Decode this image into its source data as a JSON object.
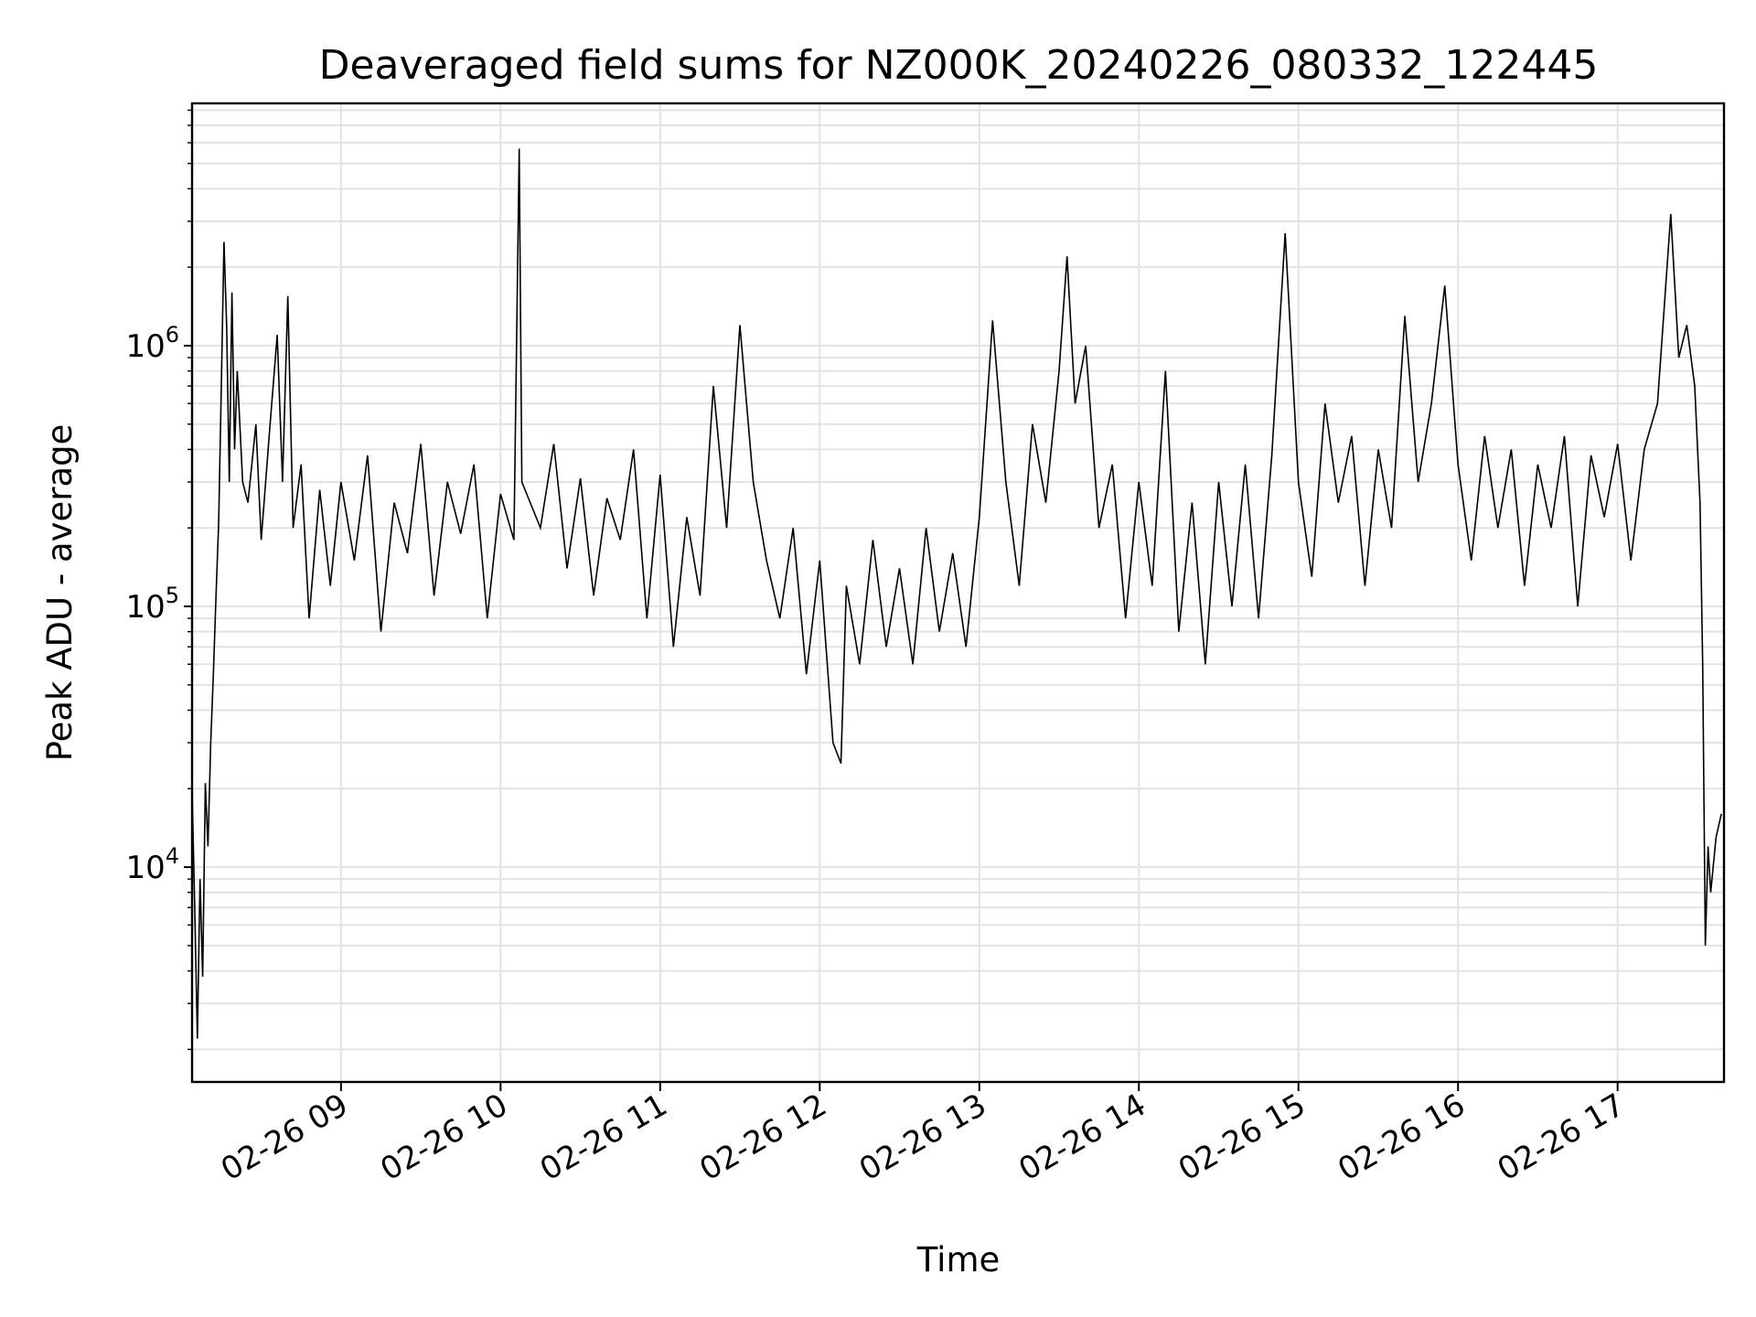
{
  "chart_data": {
    "type": "line",
    "title": "Deaveraged field sums for NZ000K_20240226_080332_122445",
    "xlabel": "Time",
    "ylabel": "Peak ADU - average",
    "y_scale": "log",
    "x_axis_type": "datetime",
    "xlim": [
      "02-26 08:04",
      "02-26 17:40"
    ],
    "ylim": [
      1500,
      8500000
    ],
    "grid": true,
    "line_color": "#000000",
    "x_ticks": [
      "02-26 09",
      "02-26 10",
      "02-26 11",
      "02-26 12",
      "02-26 13",
      "02-26 14",
      "02-26 15",
      "02-26 16",
      "02-26 17"
    ],
    "y_ticks": [
      {
        "base": "10",
        "exp": "4",
        "value": 10000
      },
      {
        "base": "10",
        "exp": "5",
        "value": 100000
      },
      {
        "base": "10",
        "exp": "6",
        "value": 1000000
      }
    ],
    "series": [
      {
        "points": [
          [
            "02-26 08:04",
            20000
          ],
          [
            "02-26 08:05",
            7000
          ],
          [
            "02-26 08:06",
            2200
          ],
          [
            "02-26 08:07",
            9000
          ],
          [
            "02-26 08:08",
            3800
          ],
          [
            "02-26 08:09",
            21000
          ],
          [
            "02-26 08:10",
            12000
          ],
          [
            "02-26 08:11",
            30000
          ],
          [
            "02-26 08:12",
            55000
          ],
          [
            "02-26 08:13",
            110000
          ],
          [
            "02-26 08:14",
            210000
          ],
          [
            "02-26 08:15",
            700000
          ],
          [
            "02-26 08:16",
            2500000
          ],
          [
            "02-26 08:17",
            1200000
          ],
          [
            "02-26 08:18",
            300000
          ],
          [
            "02-26 08:19",
            1600000
          ],
          [
            "02-26 08:20",
            400000
          ],
          [
            "02-26 08:21",
            800000
          ],
          [
            "02-26 08:23",
            300000
          ],
          [
            "02-26 08:25",
            250000
          ],
          [
            "02-26 08:28",
            500000
          ],
          [
            "02-26 08:30",
            180000
          ],
          [
            "02-26 08:33",
            450000
          ],
          [
            "02-26 08:36",
            1100000
          ],
          [
            "02-26 08:38",
            300000
          ],
          [
            "02-26 08:40",
            1550000
          ],
          [
            "02-26 08:42",
            200000
          ],
          [
            "02-26 08:45",
            350000
          ],
          [
            "02-26 08:48",
            90000
          ],
          [
            "02-26 08:52",
            280000
          ],
          [
            "02-26 08:56",
            120000
          ],
          [
            "02-26 09:00",
            300000
          ],
          [
            "02-26 09:05",
            150000
          ],
          [
            "02-26 09:10",
            380000
          ],
          [
            "02-26 09:15",
            80000
          ],
          [
            "02-26 09:20",
            250000
          ],
          [
            "02-26 09:25",
            160000
          ],
          [
            "02-26 09:30",
            420000
          ],
          [
            "02-26 09:35",
            110000
          ],
          [
            "02-26 09:40",
            300000
          ],
          [
            "02-26 09:45",
            190000
          ],
          [
            "02-26 09:50",
            350000
          ],
          [
            "02-26 09:55",
            90000
          ],
          [
            "02-26 10:00",
            270000
          ],
          [
            "02-26 10:05",
            180000
          ],
          [
            "02-26 10:07",
            5700000
          ],
          [
            "02-26 10:08",
            300000
          ],
          [
            "02-26 10:15",
            200000
          ],
          [
            "02-26 10:20",
            420000
          ],
          [
            "02-26 10:25",
            140000
          ],
          [
            "02-26 10:30",
            310000
          ],
          [
            "02-26 10:35",
            110000
          ],
          [
            "02-26 10:40",
            260000
          ],
          [
            "02-26 10:45",
            180000
          ],
          [
            "02-26 10:50",
            400000
          ],
          [
            "02-26 10:55",
            90000
          ],
          [
            "02-26 11:00",
            320000
          ],
          [
            "02-26 11:05",
            70000
          ],
          [
            "02-26 11:10",
            220000
          ],
          [
            "02-26 11:15",
            110000
          ],
          [
            "02-26 11:20",
            700000
          ],
          [
            "02-26 11:25",
            200000
          ],
          [
            "02-26 11:30",
            1200000
          ],
          [
            "02-26 11:35",
            300000
          ],
          [
            "02-26 11:40",
            150000
          ],
          [
            "02-26 11:45",
            90000
          ],
          [
            "02-26 11:50",
            200000
          ],
          [
            "02-26 11:55",
            55000
          ],
          [
            "02-26 12:00",
            150000
          ],
          [
            "02-26 12:05",
            30000
          ],
          [
            "02-26 12:08",
            25000
          ],
          [
            "02-26 12:10",
            120000
          ],
          [
            "02-26 12:15",
            60000
          ],
          [
            "02-26 12:20",
            180000
          ],
          [
            "02-26 12:25",
            70000
          ],
          [
            "02-26 12:30",
            140000
          ],
          [
            "02-26 12:35",
            60000
          ],
          [
            "02-26 12:40",
            200000
          ],
          [
            "02-26 12:45",
            80000
          ],
          [
            "02-26 12:50",
            160000
          ],
          [
            "02-26 12:55",
            70000
          ],
          [
            "02-26 13:00",
            220000
          ],
          [
            "02-26 13:05",
            1250000
          ],
          [
            "02-26 13:10",
            300000
          ],
          [
            "02-26 13:15",
            120000
          ],
          [
            "02-26 13:20",
            500000
          ],
          [
            "02-26 13:25",
            250000
          ],
          [
            "02-26 13:30",
            800000
          ],
          [
            "02-26 13:33",
            2200000
          ],
          [
            "02-26 13:36",
            600000
          ],
          [
            "02-26 13:40",
            1000000
          ],
          [
            "02-26 13:45",
            200000
          ],
          [
            "02-26 13:50",
            350000
          ],
          [
            "02-26 13:55",
            90000
          ],
          [
            "02-26 14:00",
            300000
          ],
          [
            "02-26 14:05",
            120000
          ],
          [
            "02-26 14:10",
            800000
          ],
          [
            "02-26 14:15",
            80000
          ],
          [
            "02-26 14:20",
            250000
          ],
          [
            "02-26 14:25",
            60000
          ],
          [
            "02-26 14:30",
            300000
          ],
          [
            "02-26 14:35",
            100000
          ],
          [
            "02-26 14:40",
            350000
          ],
          [
            "02-26 14:45",
            90000
          ],
          [
            "02-26 14:50",
            380000
          ],
          [
            "02-26 14:55",
            2700000
          ],
          [
            "02-26 15:00",
            300000
          ],
          [
            "02-26 15:05",
            130000
          ],
          [
            "02-26 15:10",
            600000
          ],
          [
            "02-26 15:15",
            250000
          ],
          [
            "02-26 15:20",
            450000
          ],
          [
            "02-26 15:25",
            120000
          ],
          [
            "02-26 15:30",
            400000
          ],
          [
            "02-26 15:35",
            200000
          ],
          [
            "02-26 15:40",
            1300000
          ],
          [
            "02-26 15:45",
            300000
          ],
          [
            "02-26 15:50",
            600000
          ],
          [
            "02-26 15:55",
            1700000
          ],
          [
            "02-26 16:00",
            350000
          ],
          [
            "02-26 16:05",
            150000
          ],
          [
            "02-26 16:10",
            450000
          ],
          [
            "02-26 16:15",
            200000
          ],
          [
            "02-26 16:20",
            400000
          ],
          [
            "02-26 16:25",
            120000
          ],
          [
            "02-26 16:30",
            350000
          ],
          [
            "02-26 16:35",
            200000
          ],
          [
            "02-26 16:40",
            450000
          ],
          [
            "02-26 16:45",
            100000
          ],
          [
            "02-26 16:50",
            380000
          ],
          [
            "02-26 16:55",
            220000
          ],
          [
            "02-26 17:00",
            420000
          ],
          [
            "02-26 17:05",
            150000
          ],
          [
            "02-26 17:10",
            400000
          ],
          [
            "02-26 17:15",
            600000
          ],
          [
            "02-26 17:20",
            3200000
          ],
          [
            "02-26 17:23",
            900000
          ],
          [
            "02-26 17:26",
            1200000
          ],
          [
            "02-26 17:29",
            700000
          ],
          [
            "02-26 17:31",
            250000
          ],
          [
            "02-26 17:32",
            60000
          ],
          [
            "02-26 17:33",
            5000
          ],
          [
            "02-26 17:34",
            12000
          ],
          [
            "02-26 17:35",
            8000
          ],
          [
            "02-26 17:37",
            13000
          ],
          [
            "02-26 17:39",
            16000
          ]
        ]
      }
    ]
  }
}
